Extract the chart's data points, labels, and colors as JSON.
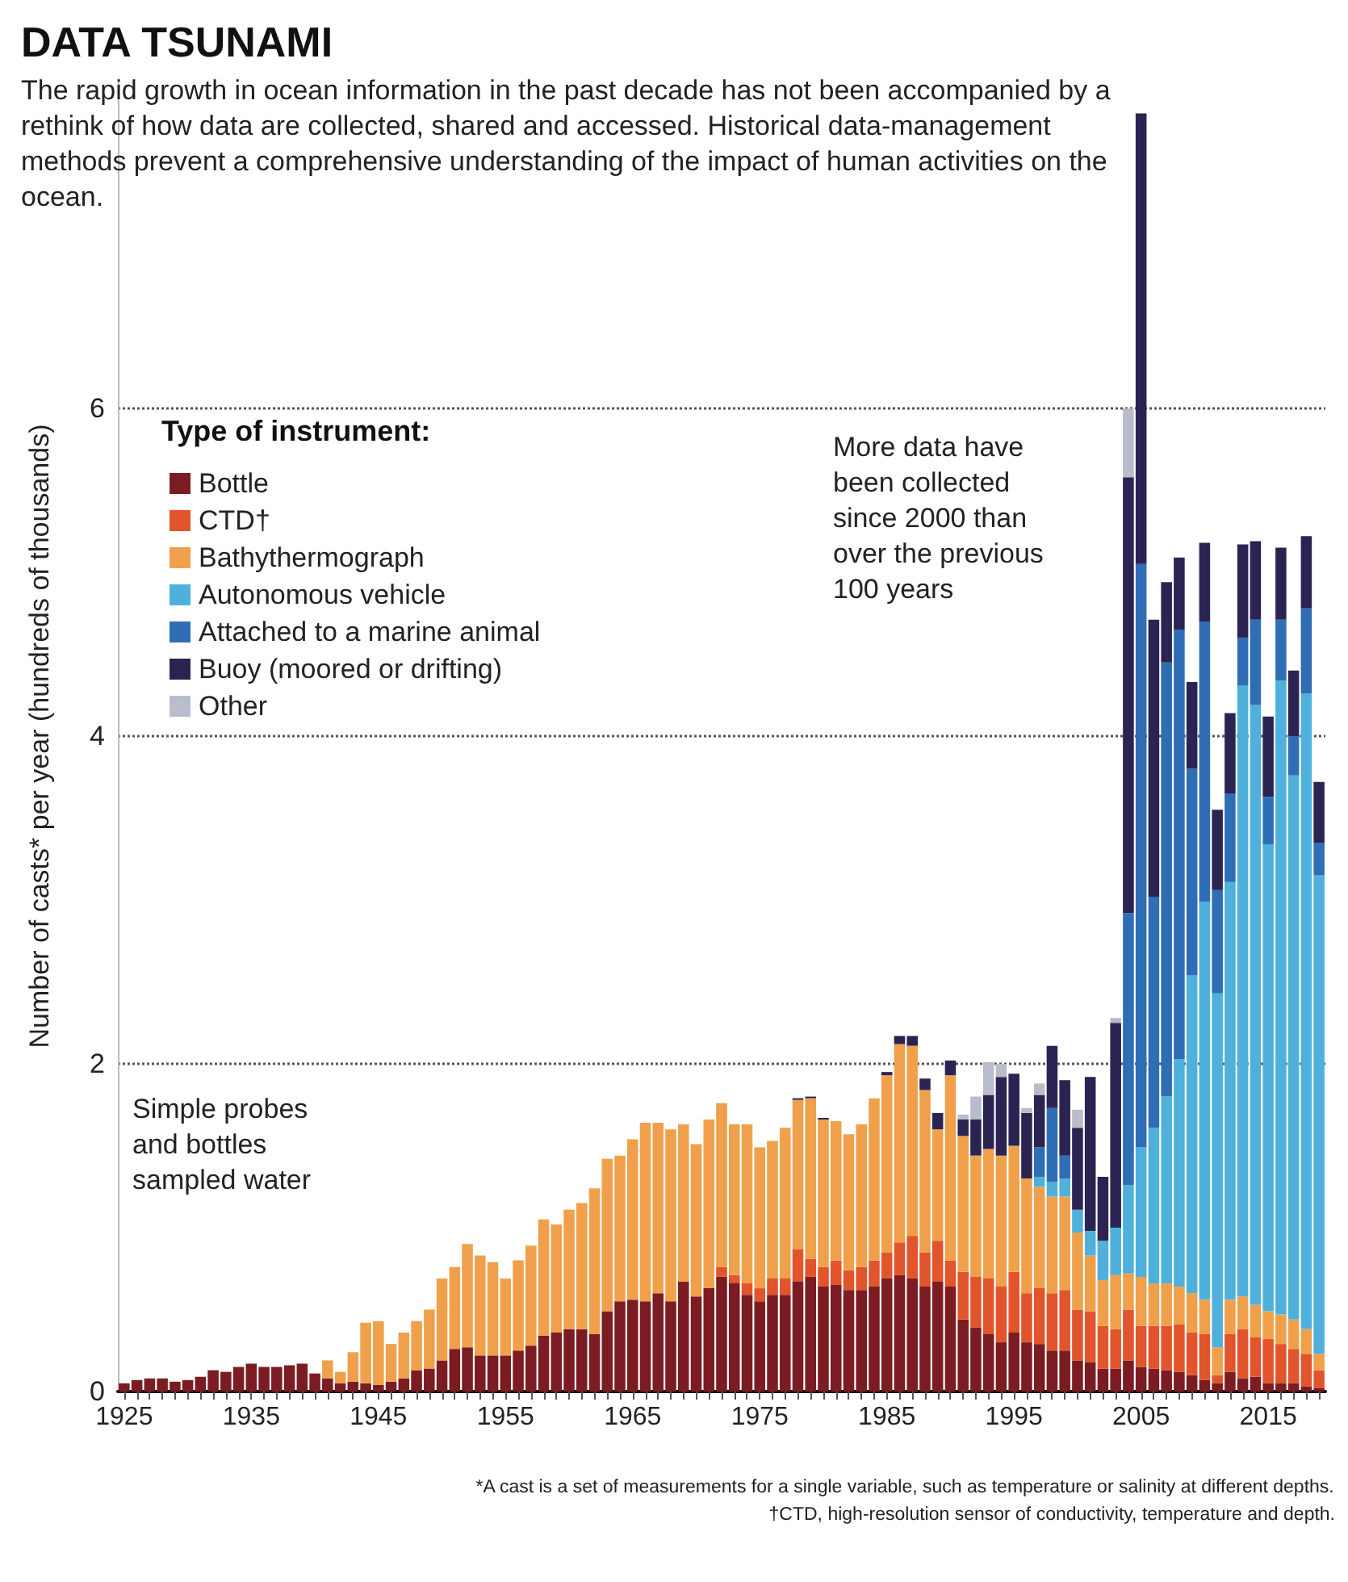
{
  "chart_data": {
    "type": "bar",
    "stacked": true,
    "title": "DATA TSUNAMI",
    "subtitle": "The rapid growth in ocean information in the past decade has not been accompanied by a rethink of how data are collected, shared and accessed. Historical data-management methods prevent a comprehensive understanding of the impact of human activities on the ocean.",
    "ylabel": "Number of casts* per year (hundreds of thousands)",
    "legend_title": "Type of instrument:",
    "legend": "top left",
    "grid": "y",
    "categories": [
      "1925",
      null,
      null,
      null,
      null,
      null,
      null,
      null,
      null,
      null,
      "1935",
      null,
      null,
      null,
      null,
      null,
      null,
      null,
      null,
      null,
      "1945",
      null,
      null,
      null,
      null,
      null,
      null,
      null,
      null,
      null,
      "1955",
      null,
      null,
      null,
      null,
      null,
      null,
      null,
      null,
      null,
      "1965",
      null,
      null,
      null,
      null,
      null,
      null,
      null,
      null,
      null,
      "1975",
      null,
      null,
      null,
      null,
      null,
      null,
      null,
      null,
      null,
      "1985",
      null,
      null,
      null,
      null,
      null,
      null,
      null,
      null,
      null,
      "1995",
      null,
      null,
      null,
      null,
      null,
      null,
      null,
      null,
      null,
      "2005",
      null,
      null,
      null,
      null,
      null,
      null,
      null,
      null,
      null,
      "2015",
      null,
      null,
      null,
      null
    ],
    "ylim": [
      0,
      8
    ],
    "yticks": [
      0,
      2,
      4,
      6
    ],
    "series": [
      {
        "name": "Bottle",
        "color": "#7b1c22",
        "values": [
          0.05,
          0.07,
          0.08,
          0.08,
          0.06,
          0.07,
          0.09,
          0.13,
          0.12,
          0.15,
          0.17,
          0.15,
          0.15,
          0.16,
          0.17,
          0.11,
          0.08,
          0.05,
          0.06,
          0.05,
          0.04,
          0.06,
          0.08,
          0.13,
          0.14,
          0.19,
          0.26,
          0.27,
          0.22,
          0.22,
          0.22,
          0.25,
          0.28,
          0.34,
          0.36,
          0.38,
          0.38,
          0.35,
          0.49,
          0.55,
          0.56,
          0.55,
          0.6,
          0.55,
          0.67,
          0.58,
          0.63,
          0.7,
          0.66,
          0.59,
          0.55,
          0.59,
          0.59,
          0.67,
          0.7,
          0.64,
          0.65,
          0.62,
          0.62,
          0.64,
          0.69,
          0.71,
          0.69,
          0.64,
          0.67,
          0.64,
          0.44,
          0.39,
          0.35,
          0.3,
          0.36,
          0.3,
          0.29,
          0.25,
          0.25,
          0.19,
          0.18,
          0.14,
          0.14,
          0.19,
          0.15,
          0.14,
          0.13,
          0.12,
          0.1,
          0.07,
          0.05,
          0.12,
          0.08,
          0.09,
          0.05,
          0.05,
          0.05,
          0.03,
          0.02
        ]
      },
      {
        "name": "CTD†",
        "color": "#e2542b",
        "values": [
          0,
          0,
          0,
          0,
          0,
          0,
          0,
          0,
          0,
          0,
          0,
          0,
          0,
          0,
          0,
          0,
          0,
          0,
          0,
          0,
          0,
          0,
          0,
          0,
          0,
          0,
          0,
          0,
          0,
          0,
          0,
          0,
          0,
          0,
          0,
          0,
          0,
          0,
          0,
          0,
          0,
          0,
          0,
          0,
          0,
          0,
          0,
          0.06,
          0.05,
          0.07,
          0.08,
          0.1,
          0.1,
          0.2,
          0.11,
          0.12,
          0.15,
          0.12,
          0.14,
          0.16,
          0.16,
          0.2,
          0.26,
          0.21,
          0.25,
          0.16,
          0.29,
          0.31,
          0.34,
          0.34,
          0.37,
          0.3,
          0.34,
          0.35,
          0.37,
          0.31,
          0.31,
          0.26,
          0.24,
          0.31,
          0.25,
          0.26,
          0.27,
          0.29,
          0.26,
          0.28,
          0.05,
          0.23,
          0.3,
          0.24,
          0.27,
          0.24,
          0.21,
          0.2,
          0.11
        ]
      },
      {
        "name": "Bathythermograph",
        "color": "#f0a04b",
        "values": [
          0,
          0,
          0,
          0,
          0,
          0,
          0,
          0,
          0,
          0,
          0,
          0,
          0,
          0,
          0,
          0,
          0.11,
          0.07,
          0.18,
          0.37,
          0.39,
          0.23,
          0.28,
          0.3,
          0.36,
          0.5,
          0.5,
          0.63,
          0.61,
          0.57,
          0.47,
          0.55,
          0.61,
          0.71,
          0.66,
          0.73,
          0.77,
          0.89,
          0.93,
          0.89,
          0.98,
          1.09,
          1.04,
          1.05,
          0.96,
          0.93,
          1.03,
          1.0,
          0.92,
          0.97,
          0.86,
          0.84,
          0.92,
          0.91,
          0.98,
          0.9,
          0.85,
          0.83,
          0.87,
          0.99,
          1.08,
          1.21,
          1.16,
          0.99,
          0.68,
          1.13,
          0.83,
          0.74,
          0.79,
          0.8,
          0.77,
          0.7,
          0.62,
          0.59,
          0.57,
          0.47,
          0.34,
          0.28,
          0.33,
          0.22,
          0.3,
          0.26,
          0.26,
          0.23,
          0.24,
          0.21,
          0.17,
          0.21,
          0.2,
          0.2,
          0.17,
          0.18,
          0.18,
          0.15,
          0.1
        ]
      },
      {
        "name": "Autonomous vehicle",
        "color": "#4fb0dc",
        "values": [
          0,
          0,
          0,
          0,
          0,
          0,
          0,
          0,
          0,
          0,
          0,
          0,
          0,
          0,
          0,
          0,
          0,
          0,
          0,
          0,
          0,
          0,
          0,
          0,
          0,
          0,
          0,
          0,
          0,
          0,
          0,
          0,
          0,
          0,
          0,
          0,
          0,
          0,
          0,
          0,
          0,
          0,
          0,
          0,
          0,
          0,
          0,
          0,
          0,
          0,
          0,
          0,
          0,
          0,
          0,
          0,
          0,
          0,
          0,
          0,
          0,
          0,
          0,
          0,
          0,
          0,
          0,
          0,
          0,
          0,
          0,
          0,
          0.06,
          0.09,
          0.11,
          0.14,
          0.15,
          0.24,
          0.29,
          0.54,
          0.79,
          0.95,
          1.14,
          1.39,
          1.94,
          2.43,
          2.16,
          2.55,
          3.73,
          3.66,
          2.85,
          3.87,
          3.32,
          3.88,
          2.92
        ]
      },
      {
        "name": "Attached to a marine animal",
        "color": "#2f6db5",
        "values": [
          0,
          0,
          0,
          0,
          0,
          0,
          0,
          0,
          0,
          0,
          0,
          0,
          0,
          0,
          0,
          0,
          0,
          0,
          0,
          0,
          0,
          0,
          0,
          0,
          0,
          0,
          0,
          0,
          0,
          0,
          0,
          0,
          0,
          0,
          0,
          0,
          0,
          0,
          0,
          0,
          0,
          0,
          0,
          0,
          0,
          0,
          0,
          0,
          0,
          0,
          0,
          0,
          0,
          0,
          0,
          0,
          0,
          0,
          0,
          0,
          0,
          0,
          0,
          0,
          0,
          0,
          0,
          0,
          0,
          0,
          0,
          0,
          0.18,
          0.45,
          0.14,
          0,
          0,
          0,
          0,
          1.66,
          3.56,
          1.41,
          2.65,
          2.62,
          1.26,
          1.71,
          0.63,
          0.54,
          0.29,
          0.52,
          0.29,
          0.37,
          0.24,
          0.52,
          0.2
        ]
      },
      {
        "name": "Buoy (moored or drifting)",
        "color": "#2b2452",
        "values": [
          0,
          0,
          0,
          0,
          0,
          0,
          0,
          0,
          0,
          0,
          0,
          0,
          0,
          0,
          0,
          0,
          0,
          0,
          0,
          0,
          0,
          0,
          0,
          0,
          0,
          0,
          0,
          0,
          0,
          0,
          0,
          0,
          0,
          0,
          0,
          0,
          0,
          0,
          0,
          0,
          0,
          0,
          0,
          0,
          0,
          0,
          0,
          0,
          0,
          0,
          0,
          0,
          0,
          0.01,
          0.01,
          0.01,
          0,
          0,
          0,
          0,
          0.02,
          0.05,
          0.06,
          0.07,
          0.1,
          0.09,
          0.1,
          0.22,
          0.33,
          0.48,
          0.44,
          0.4,
          0.32,
          0.38,
          0.46,
          0.5,
          0.94,
          0.39,
          1.25,
          2.66,
          2.75,
          1.69,
          0.49,
          0.44,
          0.53,
          0.48,
          0.49,
          0.49,
          0.57,
          0.48,
          0.49,
          0.44,
          0.4,
          0.44,
          0.37
        ]
      },
      {
        "name": "Other",
        "color": "#b8bccb",
        "values": [
          0,
          0,
          0,
          0,
          0,
          0,
          0,
          0,
          0,
          0,
          0,
          0,
          0,
          0,
          0,
          0,
          0,
          0,
          0,
          0,
          0,
          0,
          0,
          0,
          0,
          0,
          0,
          0,
          0,
          0,
          0,
          0,
          0,
          0,
          0,
          0,
          0,
          0,
          0,
          0,
          0,
          0,
          0,
          0,
          0,
          0,
          0,
          0,
          0,
          0,
          0,
          0,
          0,
          0,
          0,
          0,
          0,
          0,
          0,
          0,
          0,
          0,
          0,
          0,
          0,
          0,
          0.03,
          0.14,
          0.2,
          0.08,
          0,
          0.03,
          0.07,
          0,
          0,
          0.11,
          0,
          0,
          0.03,
          0.42,
          0,
          0,
          0,
          0,
          0,
          0,
          0,
          0,
          0,
          0,
          0,
          0,
          0,
          0,
          0
        ]
      }
    ],
    "annotations": [
      "Simple probes and bottles sampled water",
      "More data have been collected since 2000 than over the previous 100 years",
      "*A cast is a set of measurements for a single variable, such as temperature or salinity at different depths.",
      "†CTD, high-resolution sensor of conductivity, temperature and depth."
    ]
  }
}
